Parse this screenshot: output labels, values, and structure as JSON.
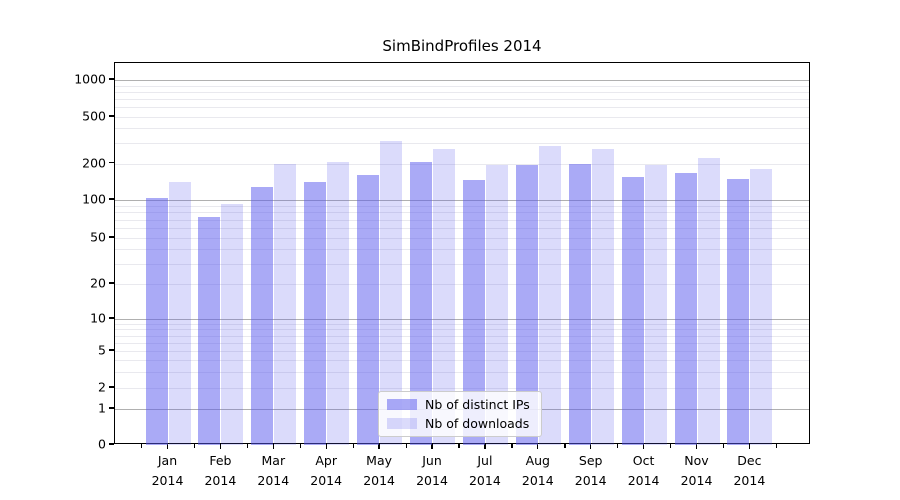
{
  "chart_data": {
    "type": "bar",
    "title": "SimBindProfiles 2014",
    "year": "2014",
    "categories": [
      "Jan",
      "Feb",
      "Mar",
      "Apr",
      "May",
      "Jun",
      "Jul",
      "Aug",
      "Sep",
      "Oct",
      "Nov",
      "Dec"
    ],
    "series": [
      {
        "name": "Nb of distinct IPs",
        "color": "#5555ee",
        "alpha": 0.5,
        "values": [
          104,
          74,
          127,
          142,
          160,
          207,
          146,
          195,
          200,
          155,
          168,
          150
        ]
      },
      {
        "name": "Nb of downloads",
        "color": "#5555ee",
        "alpha": 0.21,
        "values": [
          141,
          93,
          198,
          207,
          312,
          268,
          194,
          283,
          265,
          195,
          225,
          180
        ]
      }
    ],
    "yscale": "symlog",
    "yticks": [
      0,
      1,
      2,
      5,
      10,
      20,
      50,
      100,
      200,
      500,
      1000
    ],
    "ytick_labels": [
      "0",
      "1",
      "2",
      "5",
      "10",
      "20",
      "50",
      "100",
      "200",
      "500",
      "1000"
    ],
    "major_grid_values": [
      1,
      10,
      100,
      1000
    ],
    "minor_grid_values": [
      2,
      3,
      4,
      5,
      6,
      7,
      8,
      9,
      20,
      30,
      40,
      50,
      60,
      70,
      80,
      90,
      200,
      300,
      400,
      500,
      600,
      700,
      800,
      900
    ],
    "ylim": [
      0,
      1400
    ],
    "grid": "horizontal",
    "legend_position": "bottom-center",
    "colors": {
      "axis": "#000000",
      "major_grid": "#b0b0b0",
      "minor_grid": "#e9e9ee",
      "background": "#ffffff"
    }
  }
}
